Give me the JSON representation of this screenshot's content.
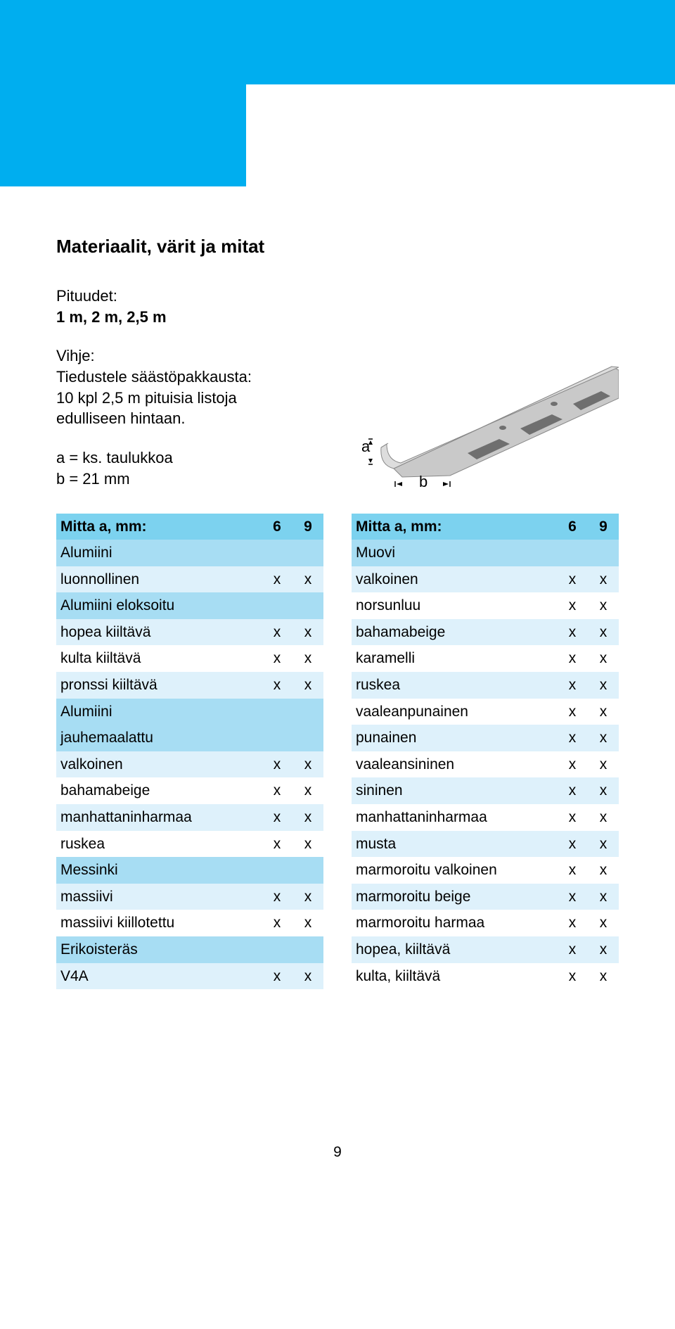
{
  "colors": {
    "band_blue": "#00aeef",
    "tab_blue": "#00aeef",
    "header_row_bg": "#7cd2ef",
    "cat_row_bg": "#a7ddf3",
    "alt_row_bg": "#def1fb",
    "white": "#ffffff",
    "text": "#000000",
    "diagram_fill": "#c9c9c9",
    "diagram_stroke": "#888888",
    "diagram_hole": "#333333"
  },
  "typography": {
    "heading_size": 26,
    "body_size": 22,
    "table_size": 21
  },
  "heading": "Materiaalit, värit ja mitat",
  "intro": {
    "lengths_label": "Pituudet:",
    "lengths_value": "1 m, 2 m, 2,5 m",
    "tip_label": "Vihje:",
    "tip_line1": "Tiedustele säästöpakkausta:",
    "tip_line2": "10 kpl 2,5 m pituisia listoja",
    "tip_line3": "edulliseen hintaan.",
    "a_line": "a = ks. taulukkoa",
    "b_line": "b = 21 mm"
  },
  "diagram": {
    "label_a": "a",
    "label_b": "b"
  },
  "pageNumber": "9",
  "tables": {
    "header_label": "Mitta a, mm:",
    "col1": "6",
    "col2": "9",
    "mark": "x",
    "left": [
      {
        "type": "cat",
        "label": "Alumiini"
      },
      {
        "type": "data",
        "label": "luonnollinen",
        "v6": true,
        "v9": true
      },
      {
        "type": "cat",
        "label": "Alumiini eloksoitu"
      },
      {
        "type": "data",
        "label": "hopea kiiltävä",
        "v6": true,
        "v9": true
      },
      {
        "type": "data",
        "label": "kulta kiiltävä",
        "v6": true,
        "v9": true
      },
      {
        "type": "data",
        "label": "pronssi kiiltävä",
        "v6": true,
        "v9": true
      },
      {
        "type": "cat",
        "label": "Alumiini"
      },
      {
        "type": "catc",
        "label": "jauhemaalattu"
      },
      {
        "type": "data",
        "label": "valkoinen",
        "v6": true,
        "v9": true
      },
      {
        "type": "data",
        "label": "bahamabeige",
        "v6": true,
        "v9": true
      },
      {
        "type": "data",
        "label": "manhattaninharmaa",
        "v6": true,
        "v9": true
      },
      {
        "type": "data",
        "label": "ruskea",
        "v6": true,
        "v9": true
      },
      {
        "type": "cat",
        "label": "Messinki"
      },
      {
        "type": "data",
        "label": "massiivi",
        "v6": true,
        "v9": true
      },
      {
        "type": "data",
        "label": "massiivi kiillotettu",
        "v6": true,
        "v9": true
      },
      {
        "type": "cat",
        "label": "Erikoisteräs"
      },
      {
        "type": "data",
        "label": "V4A",
        "v6": true,
        "v9": true
      }
    ],
    "right": [
      {
        "type": "cat",
        "label": "Muovi"
      },
      {
        "type": "data",
        "label": "valkoinen",
        "v6": true,
        "v9": true
      },
      {
        "type": "data",
        "label": "norsunluu",
        "v6": true,
        "v9": true
      },
      {
        "type": "data",
        "label": "bahamabeige",
        "v6": true,
        "v9": true
      },
      {
        "type": "data",
        "label": "karamelli",
        "v6": true,
        "v9": true
      },
      {
        "type": "data",
        "label": "ruskea",
        "v6": true,
        "v9": true
      },
      {
        "type": "data",
        "label": "vaaleanpunainen",
        "v6": true,
        "v9": true
      },
      {
        "type": "data",
        "label": "punainen",
        "v6": true,
        "v9": true
      },
      {
        "type": "data",
        "label": "vaaleansininen",
        "v6": true,
        "v9": true
      },
      {
        "type": "data",
        "label": "sininen",
        "v6": true,
        "v9": true
      },
      {
        "type": "data",
        "label": "manhattaninharmaa",
        "v6": true,
        "v9": true
      },
      {
        "type": "data",
        "label": "musta",
        "v6": true,
        "v9": true
      },
      {
        "type": "data",
        "label": "marmoroitu valkoinen",
        "v6": true,
        "v9": true
      },
      {
        "type": "data",
        "label": "marmoroitu beige",
        "v6": true,
        "v9": true
      },
      {
        "type": "data",
        "label": "marmoroitu harmaa",
        "v6": true,
        "v9": true
      },
      {
        "type": "data",
        "label": "hopea, kiiltävä",
        "v6": true,
        "v9": true
      },
      {
        "type": "data",
        "label": "kulta, kiiltävä",
        "v6": true,
        "v9": true
      }
    ]
  }
}
